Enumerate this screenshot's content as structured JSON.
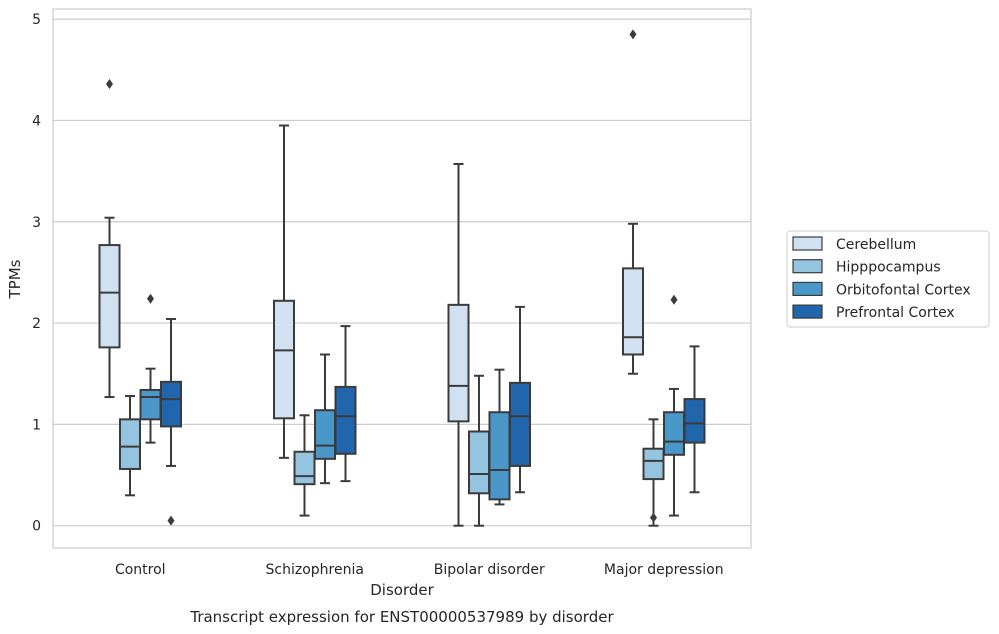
{
  "chart_data": {
    "type": "box",
    "title": "",
    "caption": "Transcript expression for ENST00000537989 by disorder",
    "xlabel": "Disorder",
    "ylabel": "TPMs",
    "ylim": [
      -0.22,
      5.1
    ],
    "yticks": [
      "0",
      "1",
      "2",
      "3",
      "4",
      "5"
    ],
    "grid": "horizontal",
    "legend_position": "right",
    "categories": [
      "Control",
      "Schizophrenia",
      "Bipolar disorder",
      "Major depression"
    ],
    "series": [
      {
        "name": "Cerebellum",
        "color": "#d0e1f2",
        "boxes": [
          {
            "whisker_low": 1.27,
            "q1": 1.76,
            "median": 2.3,
            "q3": 2.77,
            "whisker_high": 3.04,
            "outliers": [
              4.36
            ]
          },
          {
            "whisker_low": 0.67,
            "q1": 1.06,
            "median": 1.73,
            "q3": 2.22,
            "whisker_high": 3.95,
            "outliers": []
          },
          {
            "whisker_low": 0.0,
            "q1": 1.03,
            "median": 1.38,
            "q3": 2.18,
            "whisker_high": 3.57,
            "outliers": []
          },
          {
            "whisker_low": 1.5,
            "q1": 1.69,
            "median": 1.86,
            "q3": 2.54,
            "whisker_high": 2.98,
            "outliers": [
              4.85
            ]
          }
        ]
      },
      {
        "name": "Hipppocampus",
        "color": "#94c4df",
        "boxes": [
          {
            "whisker_low": 0.3,
            "q1": 0.56,
            "median": 0.78,
            "q3": 1.05,
            "whisker_high": 1.28,
            "outliers": []
          },
          {
            "whisker_low": 0.1,
            "q1": 0.41,
            "median": 0.49,
            "q3": 0.73,
            "whisker_high": 1.09,
            "outliers": []
          },
          {
            "whisker_low": 0.0,
            "q1": 0.32,
            "median": 0.51,
            "q3": 0.93,
            "whisker_high": 1.48,
            "outliers": []
          },
          {
            "whisker_low": 0.0,
            "q1": 0.46,
            "median": 0.64,
            "q3": 0.76,
            "whisker_high": 1.05,
            "outliers": [
              0.08
            ]
          }
        ]
      },
      {
        "name": "Orbitofontal Cortex",
        "color": "#4a98c9",
        "boxes": [
          {
            "whisker_low": 0.82,
            "q1": 1.05,
            "median": 1.27,
            "q3": 1.34,
            "whisker_high": 1.55,
            "outliers": [
              2.24
            ]
          },
          {
            "whisker_low": 0.42,
            "q1": 0.66,
            "median": 0.79,
            "q3": 1.14,
            "whisker_high": 1.69,
            "outliers": []
          },
          {
            "whisker_low": 0.21,
            "q1": 0.26,
            "median": 0.55,
            "q3": 1.12,
            "whisker_high": 1.54,
            "outliers": []
          },
          {
            "whisker_low": 0.1,
            "q1": 0.7,
            "median": 0.83,
            "q3": 1.12,
            "whisker_high": 1.35,
            "outliers": [
              2.23
            ]
          }
        ]
      },
      {
        "name": "Prefrontal Cortex",
        "color": "#2166ac",
        "boxes": [
          {
            "whisker_low": 0.59,
            "q1": 0.98,
            "median": 1.25,
            "q3": 1.42,
            "whisker_high": 2.04,
            "outliers": [
              0.05
            ]
          },
          {
            "whisker_low": 0.44,
            "q1": 0.71,
            "median": 1.08,
            "q3": 1.37,
            "whisker_high": 1.97,
            "outliers": []
          },
          {
            "whisker_low": 0.33,
            "q1": 0.59,
            "median": 1.08,
            "q3": 1.41,
            "whisker_high": 2.16,
            "outliers": []
          },
          {
            "whisker_low": 0.33,
            "q1": 0.82,
            "median": 1.01,
            "q3": 1.25,
            "whisker_high": 1.77,
            "outliers": []
          }
        ]
      }
    ]
  }
}
